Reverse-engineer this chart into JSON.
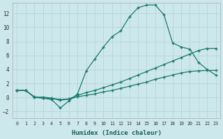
{
  "xlabel": "Humidex (Indice chaleur)",
  "background_color": "#cde8ec",
  "grid_color": "#b8d8dc",
  "line_color": "#1a7a6e",
  "xlim": [
    -0.5,
    23.5
  ],
  "ylim": [
    -3.0,
    13.5
  ],
  "yticks": [
    -2,
    0,
    2,
    4,
    6,
    8,
    10,
    12
  ],
  "xticks": [
    0,
    1,
    2,
    3,
    4,
    5,
    6,
    7,
    8,
    9,
    10,
    11,
    12,
    13,
    14,
    15,
    16,
    17,
    18,
    19,
    20,
    21,
    22,
    23
  ],
  "line1_x": [
    0,
    1,
    2,
    3,
    4,
    5,
    6,
    7,
    8,
    9,
    10,
    11,
    12,
    13,
    14,
    15,
    16,
    17,
    18,
    19,
    20,
    21,
    22,
    23
  ],
  "line1_y": [
    1.0,
    1.0,
    0.1,
    -0.1,
    -0.3,
    -1.5,
    -0.5,
    0.5,
    3.8,
    5.5,
    7.2,
    8.7,
    9.5,
    11.5,
    12.8,
    13.2,
    13.2,
    11.8,
    7.8,
    7.2,
    6.9,
    5.0,
    4.0,
    3.2
  ],
  "line2_x": [
    0,
    1,
    2,
    3,
    4,
    5,
    6,
    7,
    8,
    9,
    10,
    11,
    12,
    13,
    14,
    15,
    16,
    17,
    18,
    19,
    20,
    21,
    22,
    23
  ],
  "line2_y": [
    1.0,
    1.0,
    0.05,
    0.05,
    -0.1,
    -0.3,
    -0.2,
    0.3,
    0.7,
    1.0,
    1.4,
    1.8,
    2.2,
    2.7,
    3.2,
    3.7,
    4.2,
    4.7,
    5.2,
    5.7,
    6.2,
    6.7,
    7.0,
    7.0
  ],
  "line3_x": [
    0,
    1,
    2,
    3,
    4,
    5,
    6,
    7,
    8,
    9,
    10,
    11,
    12,
    13,
    14,
    15,
    16,
    17,
    18,
    19,
    20,
    21,
    22,
    23
  ],
  "line3_y": [
    1.0,
    1.0,
    0.0,
    -0.1,
    -0.15,
    -0.4,
    -0.25,
    0.1,
    0.3,
    0.5,
    0.8,
    1.0,
    1.3,
    1.6,
    1.9,
    2.2,
    2.6,
    2.9,
    3.2,
    3.5,
    3.7,
    3.8,
    3.85,
    3.85
  ]
}
